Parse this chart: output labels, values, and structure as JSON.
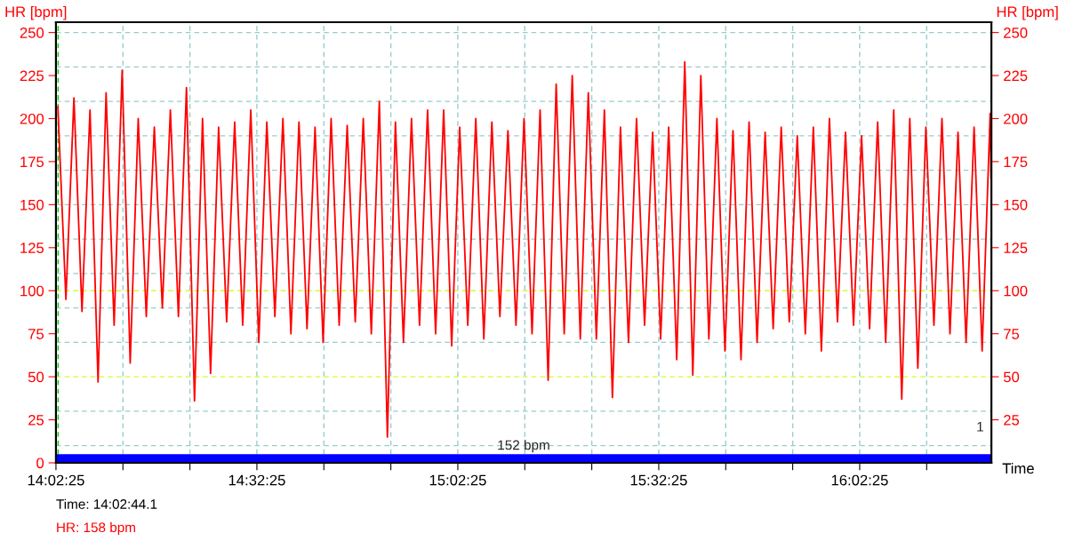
{
  "chart_data": {
    "type": "line",
    "xlabel": "Time",
    "ylabel": "HR [bpm]",
    "y2label": "HR [bpm]",
    "x": [
      14.045,
      14.065,
      14.085,
      14.105,
      14.125,
      14.145,
      14.165,
      14.185,
      14.205,
      14.225,
      14.245,
      14.265,
      14.285,
      14.305,
      14.325,
      14.345,
      14.365,
      14.385,
      14.405,
      14.425,
      14.445,
      14.465,
      14.485,
      14.505,
      14.525,
      14.545,
      14.565,
      14.585,
      14.605,
      14.625,
      14.645,
      14.665,
      14.685,
      14.705,
      14.725,
      14.745,
      14.765,
      14.785,
      14.805,
      14.825,
      14.845,
      14.865,
      14.885,
      14.905,
      14.925,
      14.945,
      14.965,
      14.985,
      15.005,
      15.025,
      15.045,
      15.065,
      15.085,
      15.105,
      15.125,
      15.145,
      15.165,
      15.185,
      15.205,
      15.225,
      15.245,
      15.265,
      15.285,
      15.305,
      15.325,
      15.345,
      15.365,
      15.385,
      15.405,
      15.425,
      15.445,
      15.465,
      15.485,
      15.505,
      15.525,
      15.545,
      15.565,
      15.585,
      15.605,
      15.625,
      15.645,
      15.665,
      15.685,
      15.705,
      15.725,
      15.745,
      15.765,
      15.785,
      15.805,
      15.825,
      15.845,
      15.865,
      15.885,
      15.905,
      15.925,
      15.945,
      15.965,
      15.985,
      16.005,
      16.025,
      16.045,
      16.065,
      16.085,
      16.105,
      16.125,
      16.145,
      16.165,
      16.185,
      16.205,
      16.225,
      16.245,
      16.265,
      16.285,
      16.305,
      16.325,
      16.345,
      16.365,
      16.367
    ],
    "series": [
      {
        "color": "#ff0000",
        "values": [
          207,
          95,
          212,
          88,
          205,
          47,
          215,
          80,
          228,
          58,
          200,
          85,
          195,
          90,
          205,
          85,
          218,
          36,
          200,
          52,
          195,
          82,
          198,
          80,
          205,
          70,
          198,
          85,
          200,
          75,
          198,
          78,
          195,
          70,
          200,
          80,
          196,
          82,
          200,
          75,
          210,
          15,
          198,
          70,
          200,
          80,
          205,
          75,
          205,
          68,
          195,
          80,
          200,
          72,
          198,
          85,
          193,
          80,
          200,
          75,
          205,
          48,
          220,
          75,
          225,
          72,
          215,
          72,
          205,
          38,
          195,
          70,
          200,
          80,
          192,
          72,
          195,
          60,
          233,
          51,
          225,
          72,
          200,
          65,
          193,
          60,
          198,
          70,
          192,
          78,
          195,
          82,
          190,
          75,
          195,
          65,
          200,
          82,
          192,
          80,
          190,
          78,
          198,
          70,
          205,
          37,
          200,
          55,
          195,
          80,
          200,
          75,
          192,
          70,
          195,
          65,
          203,
          165
        ]
      }
    ],
    "xlim": [
      14.04028,
      16.368
    ],
    "xticks": [
      {
        "value": 14.04028,
        "label": "14:02:25"
      },
      {
        "value": 14.20694,
        "label": null
      },
      {
        "value": 14.37361,
        "label": null
      },
      {
        "value": 14.54028,
        "label": "14:32:25"
      },
      {
        "value": 14.70694,
        "label": null
      },
      {
        "value": 14.87361,
        "label": null
      },
      {
        "value": 15.04028,
        "label": "15:02:25"
      },
      {
        "value": 15.20694,
        "label": null
      },
      {
        "value": 15.37361,
        "label": null
      },
      {
        "value": 15.54028,
        "label": "15:32:25"
      },
      {
        "value": 15.70694,
        "label": null
      },
      {
        "value": 15.87361,
        "label": null
      },
      {
        "value": 16.04028,
        "label": "16:02:25"
      },
      {
        "value": 16.20694,
        "label": null
      }
    ],
    "ylim": [
      0,
      256
    ],
    "yticks": [
      0,
      25,
      50,
      75,
      100,
      125,
      150,
      175,
      200,
      225,
      250
    ],
    "y2lim": [
      0,
      256
    ],
    "y2ticks": [
      25,
      50,
      75,
      100,
      125,
      150,
      175,
      200,
      225,
      250
    ],
    "grid": "x",
    "line_style": "solid",
    "ref_lines": [
      {
        "axis": "y",
        "value": 10,
        "color": "#99cccc",
        "line_style": "dashed"
      },
      {
        "axis": "y",
        "value": 30,
        "color": "#99cccc",
        "line_style": "dashed"
      },
      {
        "axis": "y",
        "value": 50,
        "color": "#ccff33",
        "line_style": "dashed"
      },
      {
        "axis": "y",
        "value": 70,
        "color": "#99cccc",
        "line_style": "dashed"
      },
      {
        "axis": "y",
        "value": 90,
        "color": "#99cccc",
        "line_style": "dashed"
      },
      {
        "axis": "y",
        "value": 100,
        "color": "#ccff33",
        "line_style": "dashed"
      },
      {
        "axis": "y",
        "value": 110,
        "color": "#99cccc",
        "line_style": "dashed"
      },
      {
        "axis": "y",
        "value": 130,
        "color": "#99cccc",
        "line_style": "dashed"
      },
      {
        "axis": "y",
        "value": 150,
        "color": "#99cccc",
        "line_style": "dashed"
      },
      {
        "axis": "y",
        "value": 170,
        "color": "#99cccc",
        "line_style": "dashed"
      },
      {
        "axis": "y",
        "value": 190,
        "color": "#99cccc",
        "line_style": "dashed"
      },
      {
        "axis": "y",
        "value": 210,
        "color": "#99cccc",
        "line_style": "dashed"
      },
      {
        "axis": "y",
        "value": 230,
        "color": "#99cccc",
        "line_style": "dashed"
      },
      {
        "axis": "y",
        "value": 250,
        "color": "#99cccc",
        "line_style": "dashed"
      },
      {
        "axis": "x",
        "value": 14.04558,
        "color": "#00cc00",
        "line_style": "dashed"
      }
    ],
    "bands": [
      {
        "axis": "y",
        "from": 0,
        "to": 5,
        "label": "152 bpm",
        "color": "#0000ff"
      }
    ],
    "annotations": [
      "1",
      "Time: 14:02:44.1",
      "HR: 158 bpm"
    ]
  }
}
